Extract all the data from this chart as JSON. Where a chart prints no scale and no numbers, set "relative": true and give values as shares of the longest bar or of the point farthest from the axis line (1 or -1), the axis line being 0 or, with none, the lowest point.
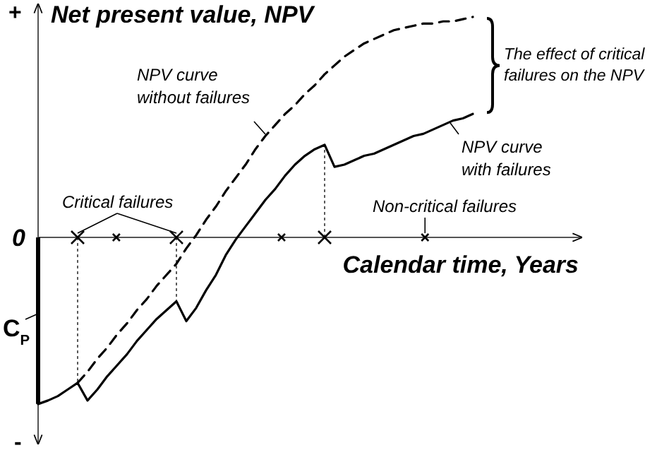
{
  "chart_data": {
    "type": "line",
    "relative": true,
    "ylabel": "Net present value, NPV",
    "xlabel": "Calendar time, Years",
    "categories": [
      null,
      null,
      null,
      null,
      null,
      null,
      null,
      null,
      null,
      null,
      null,
      null,
      null,
      null,
      null,
      null,
      null,
      null,
      null,
      null,
      null,
      null,
      null,
      null,
      null,
      null,
      null,
      null,
      null,
      null,
      null,
      null,
      null,
      null,
      null,
      null,
      null,
      null,
      null,
      null,
      null,
      null,
      null,
      null,
      null
    ],
    "series": [
      {
        "name": "NPV curve without failures",
        "color": "#000000",
        "line_style": "dashed",
        "values": [
          null,
          null,
          null,
          null,
          -0.66,
          -0.61,
          -0.55,
          -0.5,
          -0.44,
          -0.39,
          -0.33,
          -0.28,
          -0.22,
          -0.17,
          -0.12,
          -0.05,
          0.01,
          0.08,
          0.14,
          0.21,
          0.27,
          0.33,
          0.4,
          0.46,
          0.51,
          0.56,
          0.6,
          0.65,
          0.69,
          0.74,
          0.78,
          0.82,
          0.85,
          0.88,
          0.9,
          0.92,
          0.94,
          0.95,
          0.96,
          0.97,
          0.97,
          0.98,
          0.98,
          0.99,
          1
        ]
      },
      {
        "name": "NPV curve with failures",
        "color": "#000000",
        "line_style": "solid",
        "values": [
          -0.756,
          -0.74,
          -0.72,
          -0.69,
          -0.66,
          -0.74,
          -0.69,
          -0.63,
          -0.58,
          -0.53,
          -0.47,
          -0.42,
          -0.37,
          -0.33,
          -0.29,
          -0.38,
          -0.32,
          -0.24,
          -0.17,
          -0.08,
          -0.01,
          0.05,
          0.11,
          0.17,
          0.22,
          0.28,
          0.33,
          0.37,
          0.4,
          0.42,
          0.32,
          0.33,
          0.35,
          0.37,
          0.38,
          0.4,
          0.42,
          0.44,
          0.46,
          0.47,
          0.49,
          0.51,
          0.53,
          0.54,
          0.56
        ]
      }
    ],
    "legend": "right",
    "annotations": [
      "+",
      "-",
      "0",
      "C$_{P}$",
      "Critical failures",
      "Non-critical failures",
      "The effect of critical failures on the NPV"
    ]
  }
}
